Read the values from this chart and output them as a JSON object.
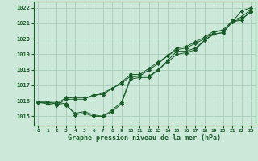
{
  "title": "Graphe pression niveau de la mer (hPa)",
  "bg_color": "#cce8d8",
  "grid_color": "#a8ccb8",
  "line_color": "#1a5c2a",
  "marker_color": "#1a5c2a",
  "xlim": [
    -0.5,
    23.5
  ],
  "ylim": [
    1014.4,
    1022.4
  ],
  "yticks": [
    1015,
    1016,
    1017,
    1018,
    1019,
    1020,
    1021,
    1022
  ],
  "xticks": [
    0,
    1,
    2,
    3,
    4,
    5,
    6,
    7,
    8,
    9,
    10,
    11,
    12,
    13,
    14,
    15,
    16,
    17,
    18,
    19,
    20,
    21,
    22,
    23
  ],
  "series": [
    [
      1015.9,
      1015.9,
      1015.9,
      1015.8,
      1015.1,
      1015.2,
      1015.0,
      1015.0,
      1015.4,
      1015.9,
      1017.5,
      1017.6,
      1017.6,
      1018.0,
      1018.6,
      1019.2,
      1019.2,
      1019.4,
      1019.9,
      1020.3,
      1020.4,
      1021.1,
      1021.8,
      1022.0
    ],
    [
      1015.9,
      1015.9,
      1015.8,
      1015.7,
      1015.2,
      1015.3,
      1015.1,
      1015.0,
      1015.3,
      1015.8,
      1017.4,
      1017.5,
      1017.5,
      1018.0,
      1018.5,
      1019.0,
      1019.1,
      1019.3,
      1019.9,
      1020.3,
      1020.4,
      1021.1,
      1021.2,
      1021.8
    ],
    [
      1015.9,
      1015.9,
      1015.8,
      1016.2,
      1016.2,
      1016.2,
      1016.3,
      1016.5,
      1016.8,
      1017.2,
      1017.7,
      1017.7,
      1018.1,
      1018.5,
      1018.9,
      1019.4,
      1019.5,
      1019.8,
      1020.1,
      1020.5,
      1020.5,
      1021.2,
      1021.4,
      1021.9
    ],
    [
      1015.9,
      1015.8,
      1015.7,
      1016.1,
      1016.1,
      1016.1,
      1016.4,
      1016.4,
      1016.8,
      1017.1,
      1017.6,
      1017.6,
      1018.0,
      1018.4,
      1018.9,
      1019.3,
      1019.4,
      1019.7,
      1020.0,
      1020.4,
      1020.6,
      1021.1,
      1021.3,
      1021.7
    ]
  ]
}
